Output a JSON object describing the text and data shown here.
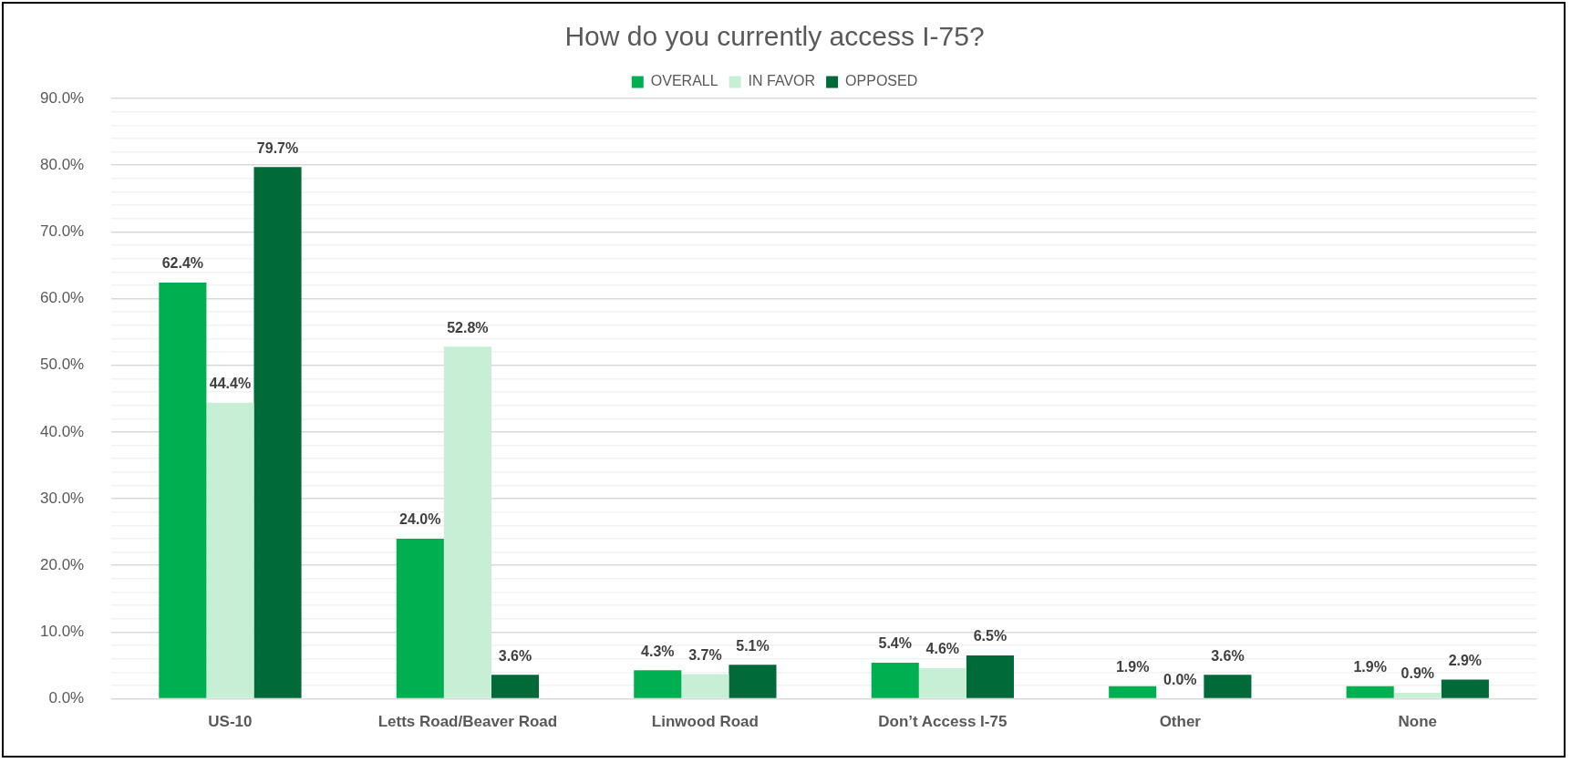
{
  "chart_data": {
    "type": "bar",
    "title": "How do you currently access I-75?",
    "categories": [
      "US-10",
      "Letts Road/Beaver Road",
      "Linwood Road",
      "Don’t Access I-75",
      "Other",
      "None"
    ],
    "series": [
      {
        "name": "OVERALL",
        "color": "#00b050",
        "values": [
          62.4,
          24.0,
          4.3,
          5.4,
          1.9,
          1.9
        ],
        "value_labels": [
          "62.4%",
          "24.0%",
          "4.3%",
          "5.4%",
          "1.9%",
          "1.9%"
        ]
      },
      {
        "name": "IN FAVOR",
        "color": "#c6efd6",
        "values": [
          44.4,
          52.8,
          3.7,
          4.6,
          0.0,
          0.9
        ],
        "value_labels": [
          "44.4%",
          "52.8%",
          "3.7%",
          "4.6%",
          "0.0%",
          "0.9%"
        ]
      },
      {
        "name": "OPPOSED",
        "color": "#006a38",
        "values": [
          79.7,
          3.6,
          5.1,
          6.5,
          3.6,
          2.9
        ],
        "value_labels": [
          "79.7%",
          "3.6%",
          "5.1%",
          "6.5%",
          "3.6%",
          "2.9%"
        ]
      }
    ],
    "ylim": [
      0,
      90
    ],
    "yticks": [
      {
        "value": 0,
        "label": "0.0%"
      },
      {
        "value": 2,
        "label": null
      },
      {
        "value": 4,
        "label": null
      },
      {
        "value": 6,
        "label": null
      },
      {
        "value": 8,
        "label": null
      },
      {
        "value": 10,
        "label": "10.0%"
      },
      {
        "value": 12,
        "label": null
      },
      {
        "value": 14,
        "label": null
      },
      {
        "value": 16,
        "label": null
      },
      {
        "value": 18,
        "label": null
      },
      {
        "value": 20,
        "label": "20.0%"
      },
      {
        "value": 22,
        "label": null
      },
      {
        "value": 24,
        "label": null
      },
      {
        "value": 26,
        "label": null
      },
      {
        "value": 28,
        "label": null
      },
      {
        "value": 30,
        "label": "30.0%"
      },
      {
        "value": 32,
        "label": null
      },
      {
        "value": 34,
        "label": null
      },
      {
        "value": 36,
        "label": null
      },
      {
        "value": 38,
        "label": null
      },
      {
        "value": 40,
        "label": "40.0%"
      },
      {
        "value": 42,
        "label": null
      },
      {
        "value": 44,
        "label": null
      },
      {
        "value": 46,
        "label": null
      },
      {
        "value": 48,
        "label": null
      },
      {
        "value": 50,
        "label": "50.0%"
      },
      {
        "value": 52,
        "label": null
      },
      {
        "value": 54,
        "label": null
      },
      {
        "value": 56,
        "label": null
      },
      {
        "value": 58,
        "label": null
      },
      {
        "value": 60,
        "label": "60.0%"
      },
      {
        "value": 62,
        "label": null
      },
      {
        "value": 64,
        "label": null
      },
      {
        "value": 66,
        "label": null
      },
      {
        "value": 68,
        "label": null
      },
      {
        "value": 70,
        "label": "70.0%"
      },
      {
        "value": 72,
        "label": null
      },
      {
        "value": 74,
        "label": null
      },
      {
        "value": 76,
        "label": null
      },
      {
        "value": 78,
        "label": null
      },
      {
        "value": 80,
        "label": "80.0%"
      },
      {
        "value": 82,
        "label": null
      },
      {
        "value": 84,
        "label": null
      },
      {
        "value": 86,
        "label": null
      },
      {
        "value": 88,
        "label": null
      },
      {
        "value": 90,
        "label": "90.0%"
      }
    ],
    "grid": "y",
    "legend": "top"
  }
}
